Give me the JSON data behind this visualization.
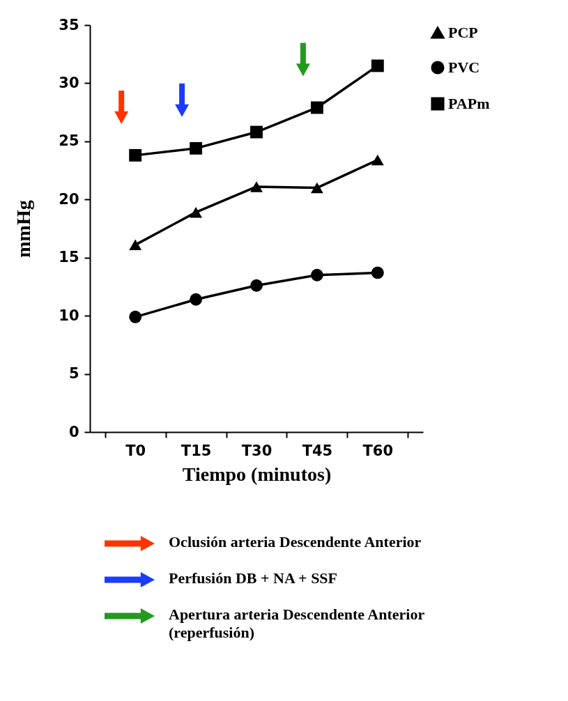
{
  "chart_data": {
    "type": "line",
    "xlabel": "Tiempo (minutos)",
    "ylabel": "mmHg",
    "categories": [
      "T0",
      "T15",
      "T30",
      "T45",
      "T60"
    ],
    "series": [
      {
        "name": "PCP",
        "color": "#000000",
        "marker": "triangle",
        "values": [
          16.1,
          18.9,
          21.1,
          21.0,
          23.4
        ]
      },
      {
        "name": "PVC",
        "color": "#000000",
        "marker": "circle",
        "values": [
          9.9,
          11.4,
          12.6,
          13.5,
          13.7
        ]
      },
      {
        "name": "PAPm",
        "color": "#000000",
        "marker": "square",
        "values": [
          23.8,
          24.4,
          25.8,
          27.9,
          31.5
        ]
      }
    ],
    "ylim": [
      0,
      35
    ],
    "yticks": [
      0,
      5,
      10,
      15,
      20,
      25,
      30,
      35
    ],
    "grid": false,
    "legend": "right",
    "line_style": "solid",
    "annotations": [
      "Oclusión arteria Descendente Anterior",
      "Perfusión DB + NA + SSF",
      "Apertura arteria Descendente Anterior (reperfusión)"
    ]
  }
}
